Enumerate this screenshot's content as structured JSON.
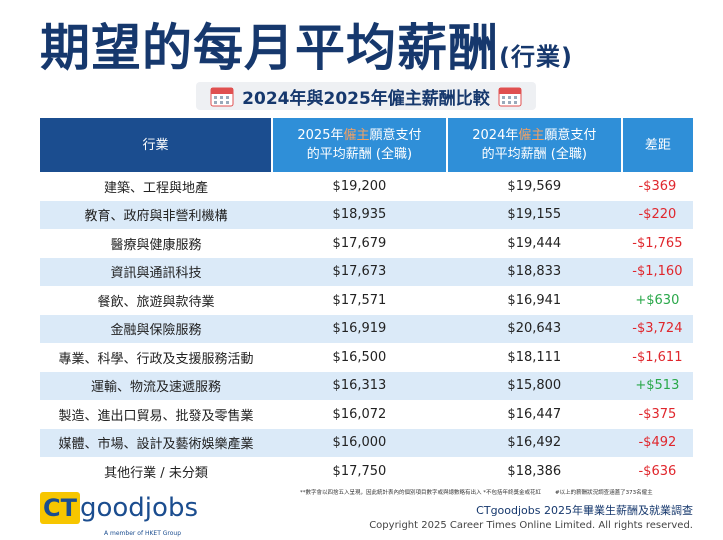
{
  "header": {
    "title": "期望的每月平均薪酬",
    "title_suffix": "(行業)",
    "subtitle": "2024年與2025年僱主薪酬比較"
  },
  "table": {
    "columns": [
      {
        "lines": [
          [
            "行業"
          ]
        ]
      },
      {
        "lines": [
          [
            "2025年",
            "僱主",
            "願意支付"
          ],
          [
            "的平均薪酬 (全職)"
          ]
        ]
      },
      {
        "lines": [
          [
            "2024年",
            "僱主",
            "願意支付"
          ],
          [
            "的平均薪酬 (全職)"
          ]
        ]
      },
      {
        "lines": [
          [
            "差距"
          ]
        ]
      }
    ],
    "rows": [
      [
        "建築、工程與地產",
        "$19,200",
        "$19,569",
        "-$369"
      ],
      [
        "教育、政府與非營利機構",
        "$18,935",
        "$19,155",
        "-$220"
      ],
      [
        "醫療與健康服務",
        "$17,679",
        "$19,444",
        "-$1,765"
      ],
      [
        "資訊與通訊科技",
        "$17,673",
        "$18,833",
        "-$1,160"
      ],
      [
        "餐飲、旅遊與款待業",
        "$17,571",
        "$16,941",
        "+$630"
      ],
      [
        "金融與保險服務",
        "$16,919",
        "$20,643",
        "-$3,724"
      ],
      [
        "專業、科學、行政及支援服務活動",
        "$16,500",
        "$18,111",
        "-$1,611"
      ],
      [
        "運輸、物流及速遞服務",
        "$16,313",
        "$15,800",
        "+$513"
      ],
      [
        "製造、進出口貿易、批發及零售業",
        "$16,072",
        "$16,447",
        "-$375"
      ],
      [
        "媒體、市場、設計及藝術娛樂產業",
        "$16,000",
        "$16,492",
        "-$492"
      ],
      [
        "其他行業 / 未分類",
        "$17,750",
        "$18,386",
        "-$636"
      ]
    ]
  },
  "footer": {
    "notes": [
      "**數字會以四捨五入呈現，因此統計表內的個別項目數字或與總數略有出入 *不包括年終獎金或花紅",
      "#以上的薪酬狀況調查涵蓋了373名僱主"
    ],
    "logo_ct": "CT",
    "logo_goodjobs": "goodjobs",
    "logo_tagline": "A member of HKET Group",
    "survey": "CTgoodjobs 2025年畢業生薪酬及就業調查",
    "copyright": "Copyright 2025 Career Times Online Limited. All rights reserved."
  }
}
